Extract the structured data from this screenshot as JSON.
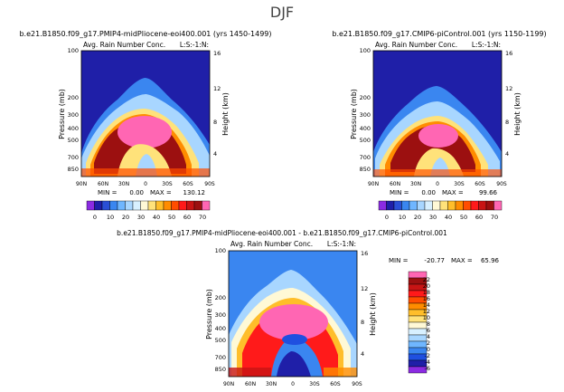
{
  "page": {
    "season_title": "DJF"
  },
  "palettes": {
    "main": [
      "#8b2be2",
      "#1f1fa8",
      "#2a4fd6",
      "#3a86f0",
      "#6fb6ff",
      "#a8d6ff",
      "#d8f0ff",
      "#fff9d6",
      "#ffe27a",
      "#ffbe2a",
      "#ff8c00",
      "#ff4d00",
      "#ff1a1a",
      "#c81414",
      "#9c1010",
      "#ff66b3"
    ],
    "diff": [
      "#8b2be2",
      "#1f1fa8",
      "#1f4fe0",
      "#3a86f0",
      "#6fb6ff",
      "#a8d6ff",
      "#d8f0ff",
      "#fff9d6",
      "#ffe27a",
      "#ffbe2a",
      "#ff8c00",
      "#ff4d00",
      "#ff1a1a",
      "#c81414",
      "#9c1010",
      "#ff66b3"
    ],
    "background_main": "#1f1fa8",
    "background_diff": "#3a86f0"
  },
  "chart_data": [
    {
      "id": "panel_left",
      "type": "heatmap",
      "title": "b.e21.B1850.f09_g17.PMIP4-midPliocene-eoi400.001 (yrs 1450-1499)",
      "subtitle": "Avg. Rain Number Conc.",
      "units_label": "L:S:-1:N:",
      "ylabel": "Pressure (mb)",
      "ylabel_right": "Height (km)",
      "x_ticks": [
        "90N",
        "60N",
        "30N",
        "0",
        "30S",
        "60S",
        "90S"
      ],
      "y_ticks": [
        "100",
        "200",
        "300",
        "400",
        "500",
        "700",
        "850"
      ],
      "y_ticks_right": [
        "16",
        "12",
        "8",
        "4"
      ],
      "min_label": "MIN =",
      "min_value": "0.00",
      "max_label": "MAX =",
      "max_value": "130.12",
      "colorbar_labels": [
        "0",
        "10",
        "20",
        "30",
        "40",
        "50",
        "60",
        "70"
      ],
      "ylim": [
        1000,
        100
      ],
      "xlim": [
        90,
        -90
      ]
    },
    {
      "id": "panel_right",
      "type": "heatmap",
      "title": "b.e21.B1850.f09_g17.CMIP6-piControl.001 (yrs 1150-1199)",
      "subtitle": "Avg. Rain Number Conc.",
      "units_label": "L:S:-1:N:",
      "ylabel": "Pressure (mb)",
      "ylabel_right": "Height (km)",
      "x_ticks": [
        "90N",
        "60N",
        "30N",
        "0",
        "30S",
        "60S",
        "90S"
      ],
      "y_ticks": [
        "100",
        "200",
        "300",
        "400",
        "500",
        "700",
        "850"
      ],
      "y_ticks_right": [
        "16",
        "12",
        "8",
        "4"
      ],
      "min_label": "MIN =",
      "min_value": "0.00",
      "max_label": "MAX =",
      "max_value": "99.66",
      "colorbar_labels": [
        "0",
        "10",
        "20",
        "30",
        "40",
        "50",
        "60",
        "70"
      ],
      "ylim": [
        1000,
        100
      ],
      "xlim": [
        90,
        -90
      ]
    },
    {
      "id": "panel_diff",
      "type": "heatmap",
      "title": "b.e21.B1850.f09_g17.PMIP4-midPliocene-eoi400.001 - b.e21.B1850.f09_g17.CMIP6-piControl.001",
      "subtitle": "Avg. Rain Number Conc.",
      "units_label": "L:S:-1:N:",
      "ylabel": "Pressure (mb)",
      "ylabel_right": "Height (km)",
      "x_ticks": [
        "90N",
        "60N",
        "30N",
        "0",
        "30S",
        "60S",
        "90S"
      ],
      "y_ticks": [
        "100",
        "200",
        "300",
        "400",
        "500",
        "700",
        "850"
      ],
      "y_ticks_right": [
        "16",
        "12",
        "8",
        "4"
      ],
      "min_label": "MIN =",
      "min_value": "-20.77",
      "max_label": "MAX =",
      "max_value": "65.96",
      "colorbar_labels": [
        "22",
        "20",
        "18",
        "16",
        "14",
        "12",
        "10",
        "8",
        "6",
        "4",
        "2",
        "0",
        "-2",
        "-4",
        "-6"
      ],
      "ylim": [
        1000,
        100
      ],
      "xlim": [
        90,
        -90
      ]
    }
  ]
}
